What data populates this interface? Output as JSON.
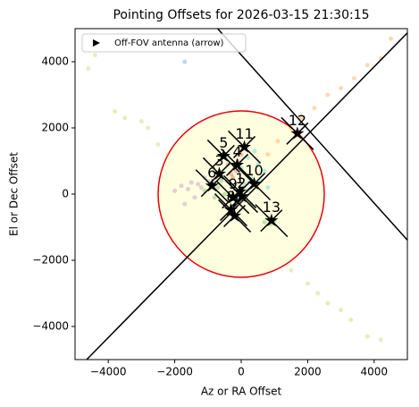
{
  "chart_data": {
    "type": "scatter",
    "title": "Pointing Offsets for 2026-03-15 21:30:15",
    "x_label": "Az or RA Offset",
    "y_label": "El or Dec Offset",
    "xlim": [
      -5000,
      5000
    ],
    "ylim": [
      -5000,
      5000
    ],
    "xticks": [
      {
        "value": -4000,
        "label": "−4000"
      },
      {
        "value": -2000,
        "label": "−2000"
      },
      0,
      2000,
      4000
    ],
    "yticks": [
      {
        "value": -4000,
        "label": "−4000"
      },
      {
        "value": -2000,
        "label": "−2000"
      },
      0,
      2000,
      4000
    ],
    "legend": {
      "label": "Off-FOV antenna (arrow)",
      "position": "upper left"
    },
    "circle": {
      "radius": 2500,
      "color": "#e8000b",
      "fill": "#ffffe0"
    },
    "lines": [
      {
        "x": [
          -4650,
          5000
        ],
        "values": [
          -5000,
          4870
        ]
      },
      {
        "x": [
          -710,
          5000
        ],
        "values": [
          5000,
          -1390
        ]
      }
    ],
    "series": [
      {
        "color": "#9467bd",
        "x": [
          -2000,
          -1800,
          -1600,
          -1500,
          -1300,
          -1200,
          -1000,
          -900,
          -1700,
          -1400,
          -1100,
          -800
        ],
        "values": [
          100,
          250,
          150,
          350,
          300,
          200,
          400,
          250,
          -300,
          -100,
          500,
          350
        ]
      },
      {
        "color": "#bcbd22",
        "x": [
          -4600,
          -4400,
          -3800,
          -3500,
          -3000,
          -2800,
          -2500,
          -2200,
          1500,
          2000,
          2300,
          2600,
          3000,
          3300,
          3800,
          4200
        ],
        "values": [
          3800,
          4200,
          2500,
          2300,
          2200,
          2000,
          1500,
          1200,
          -2300,
          -2700,
          -3000,
          -3300,
          -3500,
          -3800,
          -4300,
          -4400
        ]
      },
      {
        "color": "#ff7f0e",
        "x": [
          1500,
          1800,
          2200,
          2600,
          3000,
          3400,
          3800,
          4200,
          4500,
          800,
          1100
        ],
        "values": [
          2000,
          2300,
          2600,
          3000,
          3200,
          3500,
          3900,
          4100,
          4700,
          1200,
          1600
        ]
      },
      {
        "color": "#2ca02c",
        "x": [
          -1100,
          -900,
          -700,
          -600,
          800,
          900,
          1000,
          700,
          -500,
          -800
        ],
        "values": [
          100,
          300,
          200,
          400,
          -700,
          -900,
          -800,
          -850,
          0,
          -100
        ]
      },
      {
        "color": "#17becf",
        "x": [
          100,
          300,
          500,
          700,
          400,
          200,
          600,
          800,
          0,
          300
        ],
        "values": [
          300,
          500,
          900,
          700,
          1300,
          1100,
          400,
          200,
          800,
          -300
        ]
      },
      {
        "color": "#d62728",
        "x": [
          -300,
          -200,
          -100,
          0,
          -400,
          -250,
          -150
        ],
        "values": [
          600,
          800,
          1000,
          1200,
          900,
          500,
          700
        ]
      },
      {
        "color": "#1f77b4",
        "x": [
          -1700,
          -200,
          200
        ],
        "values": [
          4000,
          -400,
          100
        ]
      }
    ],
    "antennas": {
      "labels": [
        "1",
        "2",
        "3",
        "4",
        "5",
        "6",
        "7",
        "8",
        "9",
        "10",
        "11",
        "12",
        "13"
      ],
      "x": [
        -40,
        14,
        -660,
        -120,
        -530,
        -880,
        -200,
        -310,
        -250,
        390,
        95,
        1690,
        910
      ],
      "values": [
        70,
        -70,
        610,
        880,
        1150,
        250,
        -660,
        -475,
        -100,
        310,
        1420,
        1830,
        -800
      ]
    }
  }
}
